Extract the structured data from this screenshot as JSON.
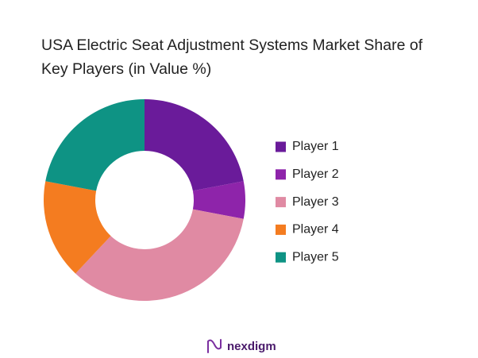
{
  "chart_data": {
    "type": "donut",
    "title": "USA Electric Seat Adjustment Systems Market Share of Key Players (in Value %)",
    "categories": [
      "Player 1",
      "Player 2",
      "Player 3",
      "Player 4",
      "Player 5"
    ],
    "values": [
      22,
      6,
      34,
      16,
      22
    ],
    "colors": [
      "#6a1b9a",
      "#8e24aa",
      "#e08aa3",
      "#f47c20",
      "#0e9384"
    ],
    "legend": "right"
  },
  "footer": {
    "logo": "nexdigm"
  }
}
